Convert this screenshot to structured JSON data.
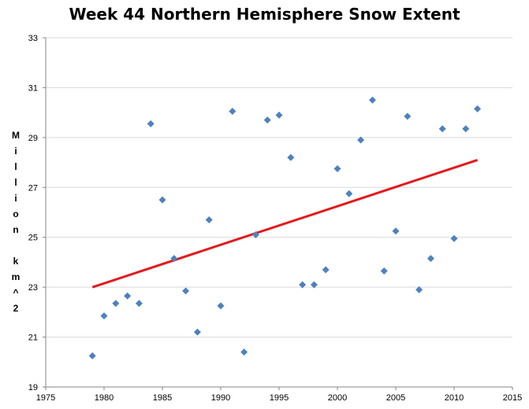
{
  "chart_data": {
    "type": "scatter",
    "title": "Week 44 Northern Hemisphere Snow Extent",
    "xlabel": "",
    "ylabel": "Million km^2",
    "xlim": [
      1975,
      2015
    ],
    "ylim": [
      19,
      33
    ],
    "x_ticks": [
      1975,
      1980,
      1985,
      1990,
      1995,
      2000,
      2005,
      2010,
      2015
    ],
    "y_ticks": [
      19,
      21,
      23,
      25,
      27,
      29,
      31,
      33
    ],
    "grid": true,
    "legend": "none",
    "points": [
      [
        1979,
        20.25
      ],
      [
        1980,
        21.85
      ],
      [
        1981,
        22.35
      ],
      [
        1982,
        22.65
      ],
      [
        1983,
        22.35
      ],
      [
        1984,
        29.55
      ],
      [
        1985,
        26.5
      ],
      [
        1986,
        24.15
      ],
      [
        1987,
        22.85
      ],
      [
        1988,
        21.2
      ],
      [
        1989,
        25.7
      ],
      [
        1990,
        22.25
      ],
      [
        1991,
        30.05
      ],
      [
        1992,
        20.4
      ],
      [
        1993,
        25.1
      ],
      [
        1994,
        29.7
      ],
      [
        1995,
        29.9
      ],
      [
        1996,
        28.2
      ],
      [
        1997,
        23.1
      ],
      [
        1998,
        23.1
      ],
      [
        1999,
        23.7
      ],
      [
        2000,
        27.75
      ],
      [
        2001,
        26.75
      ],
      [
        2002,
        28.9
      ],
      [
        2003,
        30.5
      ],
      [
        2004,
        23.65
      ],
      [
        2005,
        25.25
      ],
      [
        2006,
        29.85
      ],
      [
        2007,
        22.9
      ],
      [
        2008,
        24.15
      ],
      [
        2009,
        29.35
      ],
      [
        2010,
        24.95
      ],
      [
        2011,
        29.35
      ],
      [
        2012,
        30.15
      ]
    ],
    "trendline": {
      "x": [
        1979,
        2012
      ],
      "y": [
        23.0,
        28.1
      ]
    },
    "colors": {
      "marker": "#4f81bd",
      "trendline": "#e31a1c",
      "grid": "#d9d9d9",
      "axis": "#868686"
    }
  }
}
